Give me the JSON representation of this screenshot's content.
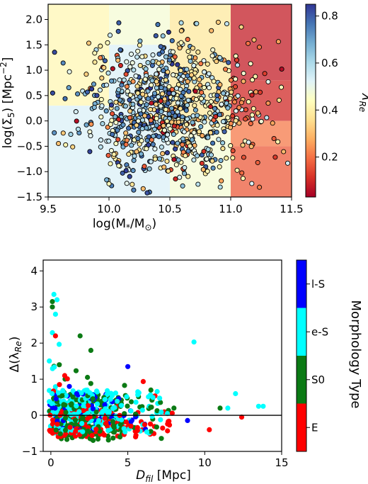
{
  "chart_data": [
    {
      "type": "scatter",
      "xlabel_base": "log(M",
      "xlabel_sub": "*",
      "xlabel_mid": "/M",
      "xlabel_sub2": "⊙",
      "xlabel_end": ")",
      "ylabel_base": "log(Σ",
      "ylabel_sub": "5",
      "ylabel_mid": ") [Mpc",
      "ylabel_sup": "−2",
      "ylabel_end": "]",
      "xlim": [
        9.5,
        11.5
      ],
      "ylim": [
        -1.5,
        2.3
      ],
      "xticks": [
        "9.5",
        "10.0",
        "10.5",
        "11.0",
        "11.5"
      ],
      "xtick_values": [
        9.5,
        10.0,
        10.5,
        11.0,
        11.5
      ],
      "yticks": [
        "−1.5",
        "−1.0",
        "−0.5",
        "0.0",
        "0.5",
        "1.0",
        "1.5",
        "2.0"
      ],
      "ytick_values": [
        -1.5,
        -1.0,
        -0.5,
        0.0,
        0.5,
        1.0,
        1.5,
        2.0
      ],
      "colorbar": {
        "label_base": "λ",
        "label_sub": "Re",
        "range": [
          0.03,
          0.85
        ],
        "ticks": [
          "0.2",
          "0.4",
          "0.6",
          "0.8"
        ],
        "tick_values": [
          0.2,
          0.4,
          0.6,
          0.8
        ],
        "colormap": "RdYlBu"
      },
      "background_bins": {
        "x_edges": [
          9.5,
          10.0,
          10.5,
          11.0,
          11.5
        ],
        "cells": [
          {
            "x": [
              9.5,
              10.0
            ],
            "y": [
              0.3,
              2.3
            ],
            "value": 0.42
          },
          {
            "x": [
              9.5,
              10.0
            ],
            "y": [
              -1.5,
              0.3
            ],
            "value": 0.53
          },
          {
            "x": [
              10.0,
              10.5
            ],
            "y": [
              1.5,
              2.3
            ],
            "value": 0.47
          },
          {
            "x": [
              10.0,
              10.5
            ],
            "y": [
              -1.5,
              1.5
            ],
            "value": 0.53
          },
          {
            "x": [
              10.5,
              11.0
            ],
            "y": [
              0.0,
              2.3
            ],
            "value": 0.38
          },
          {
            "x": [
              10.5,
              11.0
            ],
            "y": [
              -1.5,
              0.0
            ],
            "value": 0.47
          },
          {
            "x": [
              11.0,
              11.5
            ],
            "y": [
              0.8,
              2.3
            ],
            "value": 0.08
          },
          {
            "x": [
              11.0,
              11.5
            ],
            "y": [
              0.0,
              0.8
            ],
            "value": 0.1
          },
          {
            "x": [
              11.0,
              11.5
            ],
            "y": [
              -0.5,
              0.0
            ],
            "value": 0.21
          },
          {
            "x": [
              11.0,
              11.5
            ],
            "y": [
              -1.5,
              -0.5
            ],
            "value": 0.17
          }
        ]
      },
      "points_note_shown": "",
      "n_points": 900,
      "x_center": 10.5,
      "y_center": 0.2
    },
    {
      "type": "scatter",
      "xlabel_base": "D",
      "xlabel_sub": "fil",
      "xlabel_end": " [Mpc]",
      "ylabel_base": "Δ(λ",
      "ylabel_sub": "Re",
      "ylabel_end": ")",
      "xlim": [
        -0.5,
        15
      ],
      "ylim": [
        -1,
        4.3
      ],
      "xticks": [
        "0",
        "5",
        "10",
        "15"
      ],
      "xtick_values": [
        0,
        5,
        10,
        15
      ],
      "yticks": [
        "−1",
        "0",
        "1",
        "2",
        "3",
        "4"
      ],
      "ytick_values": [
        -1,
        0,
        1,
        2,
        3,
        4
      ],
      "zero_line": 0,
      "colorbar": {
        "label": "Morphology Type",
        "categories": [
          {
            "name": "E",
            "color": "#ff0000"
          },
          {
            "name": "S0",
            "color": "#0b7a14"
          },
          {
            "name": "e-S",
            "color": "#00ffff"
          },
          {
            "name": "l-S",
            "color": "#0000ff"
          }
        ]
      },
      "series": [
        {
          "name": "E",
          "color": "#ff0000",
          "highlights": [
            [
              0.3,
              2.2
            ],
            [
              0.9,
              1.1
            ],
            [
              12.4,
              -0.05
            ],
            [
              10.3,
              -0.4
            ]
          ]
        },
        {
          "name": "S0",
          "color": "#0b7a14",
          "highlights": [
            [
              0.1,
              3.15
            ],
            [
              0.1,
              3.0
            ],
            [
              1.9,
              2.2
            ],
            [
              2.6,
              1.8
            ],
            [
              6.5,
              0.7
            ],
            [
              8.0,
              0.2
            ],
            [
              11.0,
              0.2
            ]
          ]
        },
        {
          "name": "e-S",
          "color": "#00ffff",
          "highlights": [
            [
              0.2,
              3.35
            ],
            [
              0.4,
              3.2
            ],
            [
              0.3,
              2.8
            ],
            [
              9.3,
              2.03
            ],
            [
              12.0,
              0.6
            ],
            [
              11.5,
              0.2
            ],
            [
              13.5,
              0.25
            ],
            [
              13.8,
              0.25
            ]
          ]
        },
        {
          "name": "l-S",
          "color": "#0000ff",
          "highlights": [
            [
              5.0,
              1.35
            ],
            [
              1.2,
              0.8
            ],
            [
              3.5,
              0.5
            ]
          ]
        }
      ]
    }
  ]
}
